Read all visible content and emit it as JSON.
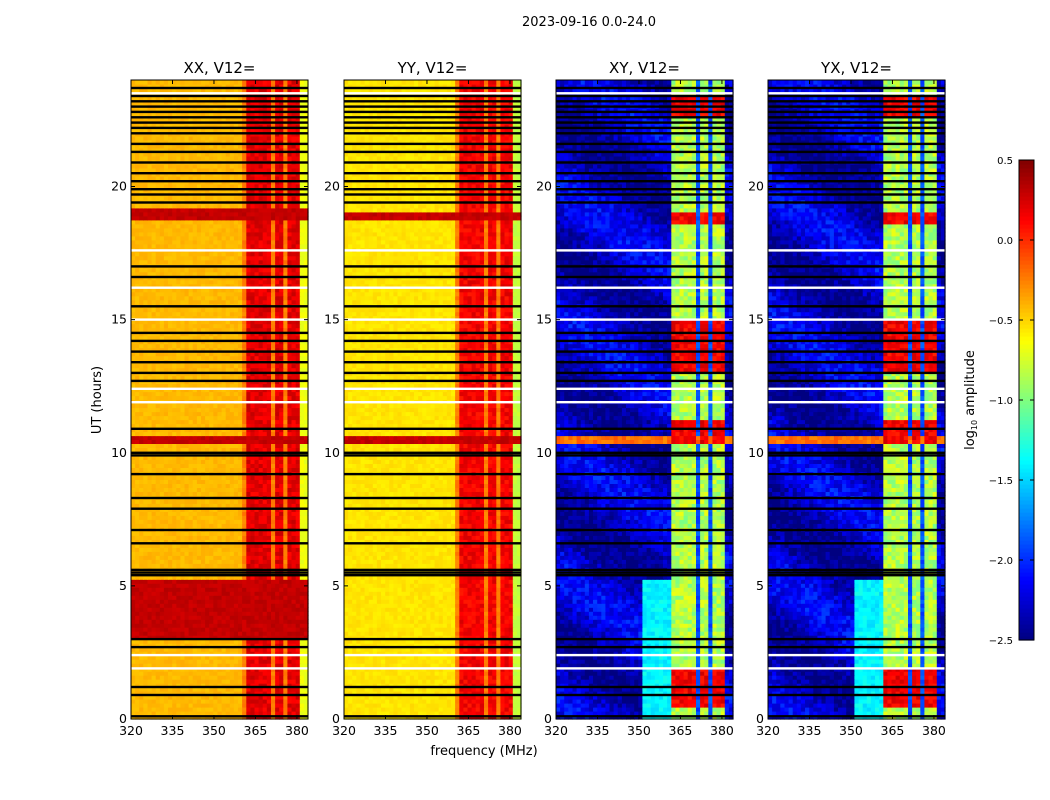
{
  "chart_data": {
    "type": "heatmap",
    "suptitle": "2023-09-16 0.0-24.0",
    "xlabel": "frequency (MHz)",
    "ylabel": "UT (hours)",
    "xlim": [
      320,
      384
    ],
    "ylim": [
      0,
      24
    ],
    "xticks": [
      320,
      335,
      350,
      365,
      380
    ],
    "yticks": [
      0,
      5,
      10,
      15,
      20
    ],
    "colorbar": {
      "label_main": "log",
      "label_sub": "10",
      "label_rest": " amplitude",
      "colormap": "jet",
      "range": [
        -2.5,
        0.5
      ],
      "ticks": [
        0.5,
        0.0,
        -0.5,
        -1.0,
        -1.5,
        -2.0,
        -2.5
      ],
      "tick_labels": [
        "0.5",
        "0.0",
        "−0.5",
        "−1.0",
        "−1.5",
        "−2.0",
        "−2.5"
      ]
    },
    "band_MHz": [
      [
        362,
        366
      ],
      [
        366.5,
        370.5
      ],
      [
        371.5,
        375.5
      ],
      [
        376.5,
        380.5
      ]
    ],
    "panels": [
      {
        "title": "XX, V12=",
        "kind": "auto",
        "base": -0.42,
        "band_level": 0.2,
        "high_intervals_h": [
          [
            3.0,
            5.3
          ],
          [
            10.3,
            10.7
          ],
          [
            18.8,
            19.2
          ]
        ]
      },
      {
        "title": "YY, V12=",
        "kind": "auto",
        "base": -0.55,
        "band_level": 0.15,
        "high_intervals_h": [
          [
            10.3,
            10.6
          ],
          [
            18.8,
            19.0
          ]
        ]
      },
      {
        "title": "XY, V12=",
        "kind": "cross",
        "base": -2.3,
        "band_level": -0.85,
        "high_intervals_h": [
          [
            0.5,
            2.0
          ],
          [
            10.4,
            11.2
          ],
          [
            13.0,
            15.0
          ],
          [
            18.6,
            19.0
          ],
          [
            22.7,
            23.4
          ]
        ]
      },
      {
        "title": "YX, V12=",
        "kind": "cross",
        "base": -2.3,
        "band_level": -0.85,
        "high_intervals_h": [
          [
            0.5,
            2.0
          ],
          [
            10.4,
            11.2
          ],
          [
            13.0,
            15.0
          ],
          [
            18.6,
            19.0
          ],
          [
            22.7,
            23.4
          ]
        ]
      }
    ],
    "flagged_rows_h": [
      0.1,
      0.9,
      1.2,
      2.7,
      3.0,
      5.4,
      5.5,
      5.6,
      6.6,
      7.1,
      7.9,
      8.3,
      9.2,
      9.9,
      10.0,
      10.9,
      12.7,
      13.0,
      13.4,
      13.8,
      14.2,
      14.5,
      15.5,
      16.6,
      17.0,
      19.4,
      19.7,
      19.9,
      20.2,
      20.5,
      20.9,
      21.3,
      21.6,
      22.0,
      22.2,
      22.4,
      22.6,
      22.8,
      23.0,
      23.2,
      23.4,
      23.7
    ],
    "gap_rows_h": [
      1.9,
      2.4,
      11.9,
      12.4,
      15.0,
      16.2,
      17.6,
      23.5
    ]
  }
}
